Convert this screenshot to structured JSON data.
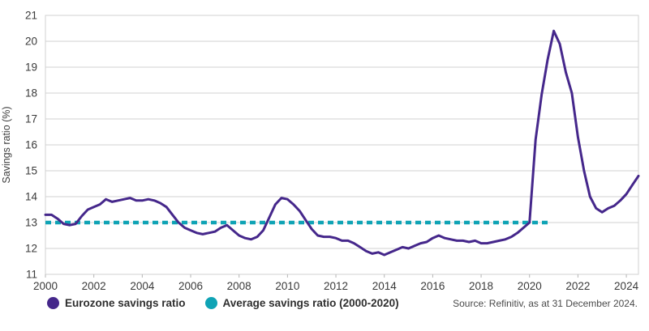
{
  "chart_data": {
    "type": "line",
    "title": "",
    "xlabel": "",
    "ylabel": "Savings ratio (%)",
    "xlim": [
      2000,
      2024.5
    ],
    "ylim": [
      11,
      21
    ],
    "x_ticks": [
      2000,
      2002,
      2004,
      2006,
      2008,
      2010,
      2012,
      2014,
      2016,
      2018,
      2020,
      2022,
      2024
    ],
    "y_ticks": [
      11,
      12,
      13,
      14,
      15,
      16,
      17,
      18,
      19,
      20,
      21
    ],
    "grid": "horizontal",
    "legend_position": "bottom-left",
    "colors": {
      "eurozone_line": "#45278B",
      "average_line": "#0FA3B5",
      "gridline": "#d2d2d2",
      "axis_text": "#3a3a3a"
    },
    "series": [
      {
        "name": "Eurozone savings ratio",
        "color": "#45278B",
        "style": "solid",
        "x_start": 2000,
        "x_step": 0.25,
        "values": [
          13.3,
          13.3,
          13.15,
          12.95,
          12.9,
          12.95,
          13.25,
          13.5,
          13.6,
          13.7,
          13.9,
          13.8,
          13.85,
          13.9,
          13.95,
          13.85,
          13.85,
          13.9,
          13.85,
          13.75,
          13.6,
          13.3,
          13.0,
          12.8,
          12.7,
          12.6,
          12.55,
          12.6,
          12.65,
          12.8,
          12.9,
          12.7,
          12.5,
          12.4,
          12.35,
          12.45,
          12.7,
          13.2,
          13.7,
          13.95,
          13.9,
          13.7,
          13.45,
          13.1,
          12.75,
          12.5,
          12.45,
          12.45,
          12.4,
          12.3,
          12.3,
          12.2,
          12.05,
          11.9,
          11.8,
          11.85,
          11.75,
          11.85,
          11.95,
          12.05,
          12.0,
          12.1,
          12.2,
          12.25,
          12.4,
          12.5,
          12.4,
          12.35,
          12.3,
          12.3,
          12.25,
          12.3,
          12.2,
          12.2,
          12.25,
          12.3,
          12.35,
          12.45,
          12.6,
          12.8,
          13.0,
          16.2,
          17.95,
          19.3,
          20.4,
          19.9,
          18.8,
          18.0,
          16.3,
          15.0,
          14.0,
          13.55,
          13.4,
          13.55,
          13.65,
          13.85,
          14.1,
          14.45,
          14.8
        ]
      },
      {
        "name": "Average savings ratio (2000-2020)",
        "color": "#0FA3B5",
        "style": "dashed",
        "x_range": [
          2000,
          2020.75
        ],
        "value": 13.0
      }
    ],
    "source_note": "Source: Refinitiv, as at 31 December 2024."
  }
}
